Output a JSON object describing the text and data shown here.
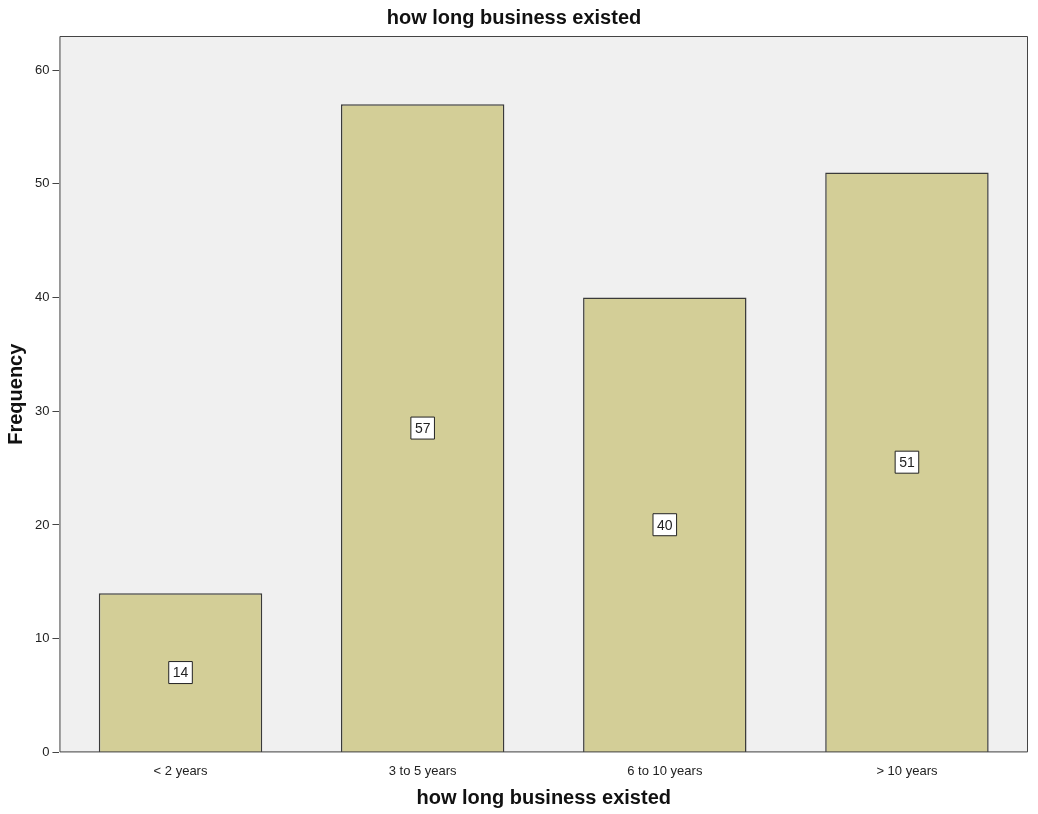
{
  "chart_data": {
    "type": "bar",
    "title": "how long business existed",
    "xlabel": "how long business existed",
    "ylabel": "Frequency",
    "categories": [
      "< 2 years",
      "3 to 5 years",
      "6 to 10 years",
      "> 10 years"
    ],
    "values": [
      14,
      57,
      40,
      51
    ],
    "color": "#d3ce97",
    "ylim": [
      0,
      63
    ],
    "yticks": [
      0,
      10,
      20,
      30,
      40,
      50,
      60
    ],
    "grid": false,
    "data_labels": true
  }
}
